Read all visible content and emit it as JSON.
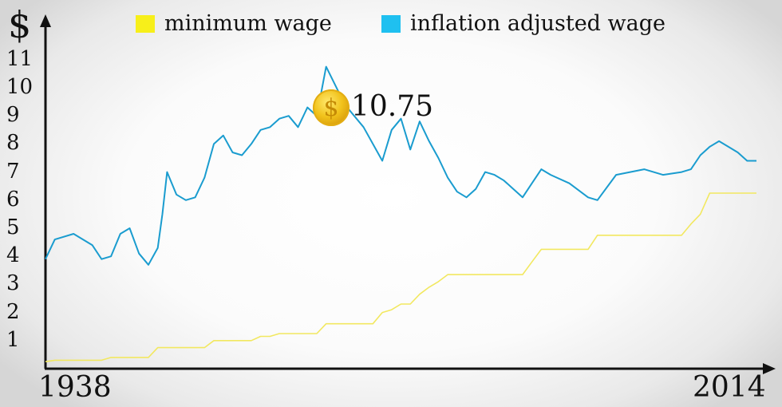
{
  "legend": {
    "minimum": {
      "label": "minimum wage",
      "color": "#f7ef1a"
    },
    "inflation": {
      "label": "inflation adjusted wage",
      "color": "#1fc0f0"
    }
  },
  "chart_data": {
    "type": "line",
    "ylabel": "$",
    "x_start_label": "1938",
    "x_end_label": "2014",
    "xlim": [
      1938,
      2014
    ],
    "ylim": [
      0,
      12
    ],
    "yticks": [
      "1",
      "2",
      "3",
      "4",
      "5",
      "6",
      "7",
      "8",
      "9",
      "10",
      "11"
    ],
    "annotation": {
      "text": "10.75",
      "x": 1968
    },
    "series": [
      {
        "name": "minimum wage",
        "color": "#f2e860",
        "x": [
          1938,
          1939,
          1944,
          1945,
          1949,
          1950,
          1955,
          1956,
          1960,
          1961,
          1962,
          1963,
          1967,
          1968,
          1973,
          1974,
          1975,
          1976,
          1977,
          1978,
          1979,
          1980,
          1981,
          1982,
          1989,
          1990,
          1991,
          1996,
          1997,
          2006,
          2007,
          2008,
          2009,
          2014
        ],
        "values": [
          0.25,
          0.3,
          0.3,
          0.4,
          0.4,
          0.75,
          0.75,
          1.0,
          1.0,
          1.15,
          1.15,
          1.25,
          1.25,
          1.6,
          1.6,
          2.0,
          2.1,
          2.3,
          2.3,
          2.65,
          2.9,
          3.1,
          3.35,
          3.35,
          3.35,
          3.8,
          4.25,
          4.25,
          4.75,
          4.75,
          5.15,
          5.5,
          6.25,
          6.25
        ]
      },
      {
        "name": "inflation adjusted wage",
        "color": "#1a9ccf",
        "x": [
          1938,
          1939,
          1941,
          1943,
          1944,
          1945,
          1946,
          1947,
          1948,
          1949,
          1950,
          1950.5,
          1951,
          1952,
          1953,
          1954,
          1955,
          1956,
          1957,
          1958,
          1959,
          1960,
          1961,
          1962,
          1963,
          1964,
          1965,
          1966,
          1967,
          1968,
          1970,
          1972,
          1974,
          1975,
          1976,
          1977,
          1978,
          1979,
          1980,
          1981,
          1982,
          1983,
          1984,
          1985,
          1986,
          1987,
          1988,
          1989,
          1990,
          1991,
          1992,
          1994,
          1996,
          1997,
          1999,
          2002,
          2004,
          2006,
          2007,
          2008,
          2009,
          2010,
          2011,
          2012,
          2013,
          2014
        ],
        "values": [
          3.9,
          4.6,
          4.8,
          4.4,
          3.9,
          4.0,
          4.8,
          5.0,
          4.1,
          3.7,
          4.3,
          5.5,
          7.0,
          6.2,
          6.0,
          6.1,
          6.8,
          8.0,
          8.3,
          7.7,
          7.6,
          8.0,
          8.5,
          8.6,
          8.9,
          9.0,
          8.6,
          9.3,
          9.0,
          10.75,
          9.4,
          8.6,
          7.4,
          8.5,
          8.9,
          7.8,
          8.8,
          8.1,
          7.5,
          6.8,
          6.3,
          6.1,
          6.4,
          7.0,
          6.9,
          6.7,
          6.4,
          6.1,
          6.6,
          7.1,
          6.9,
          6.6,
          6.1,
          6.0,
          6.9,
          7.1,
          6.9,
          7.0,
          7.1,
          7.6,
          7.9,
          8.1,
          7.9,
          7.7,
          7.4,
          7.4
        ]
      }
    ]
  }
}
